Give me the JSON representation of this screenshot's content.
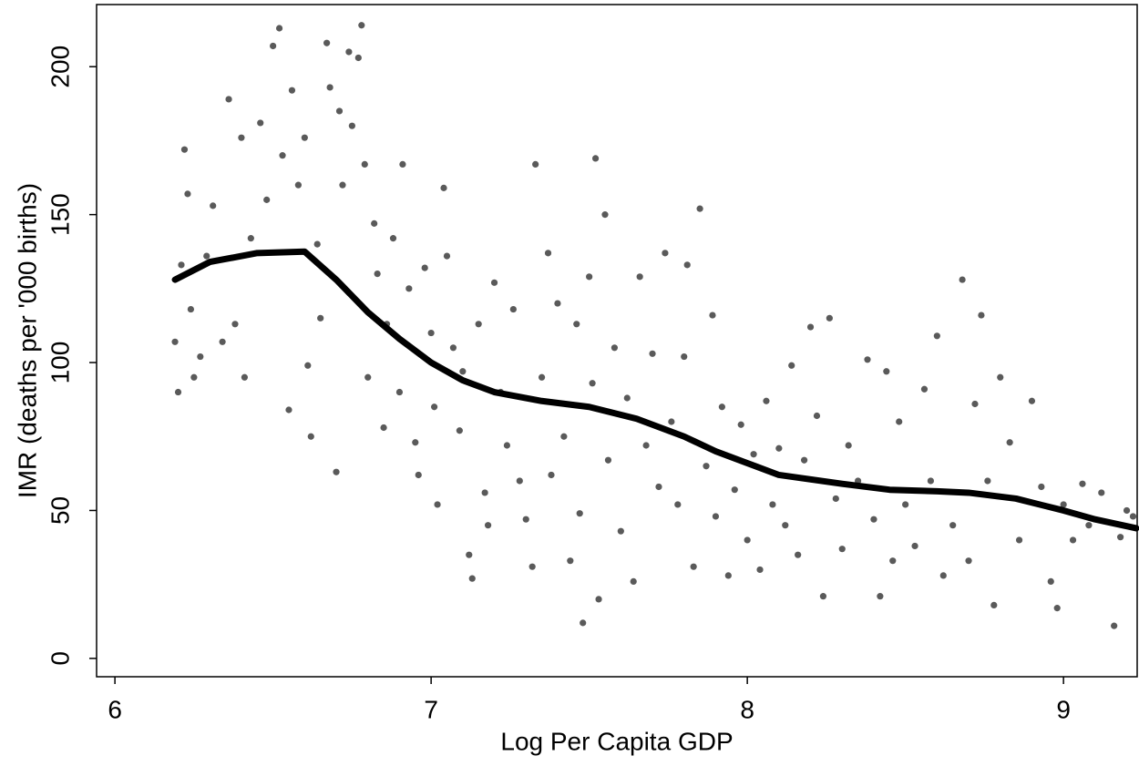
{
  "chart_data": {
    "type": "scatter",
    "x_label": "Log Per Capita GDP",
    "y_label": "IMR (deaths per '000 births)",
    "xlim": [
      5.942,
      9.233
    ],
    "xticks": [
      6,
      7,
      8,
      9
    ],
    "ylim": [
      -6.2,
      221
    ],
    "yticks": [
      0,
      50,
      100,
      150,
      200
    ],
    "series": [
      {
        "type": "scatter",
        "color": "#5a5a5a",
        "x": [
          6.19,
          6.2,
          6.21,
          6.22,
          6.23,
          6.24,
          6.25,
          6.27,
          6.29,
          6.31,
          6.34,
          6.36,
          6.38,
          6.4,
          6.41,
          6.43,
          6.46,
          6.48,
          6.5,
          6.52,
          6.53,
          6.55,
          6.56,
          6.58,
          6.6,
          6.61,
          6.62,
          6.64,
          6.65,
          6.67,
          6.68,
          6.7,
          6.71,
          6.72,
          6.74,
          6.75,
          6.77,
          6.78,
          6.79,
          6.8,
          6.82,
          6.83,
          6.85,
          6.86,
          6.88,
          6.9,
          6.91,
          6.93,
          6.95,
          6.96,
          6.98,
          7.0,
          7.01,
          7.02,
          7.04,
          7.05,
          7.07,
          7.09,
          7.1,
          7.12,
          7.13,
          7.15,
          7.17,
          7.18,
          7.2,
          7.22,
          7.24,
          7.26,
          7.28,
          7.3,
          7.32,
          7.33,
          7.35,
          7.37,
          7.38,
          7.4,
          7.42,
          7.44,
          7.46,
          7.47,
          7.48,
          7.5,
          7.51,
          7.52,
          7.53,
          7.55,
          7.56,
          7.58,
          7.6,
          7.62,
          7.64,
          7.66,
          7.68,
          7.7,
          7.72,
          7.74,
          7.76,
          7.78,
          7.8,
          7.81,
          7.83,
          7.85,
          7.87,
          7.89,
          7.9,
          7.92,
          7.94,
          7.96,
          7.98,
          8.0,
          8.02,
          8.04,
          8.06,
          8.08,
          8.1,
          8.12,
          8.14,
          8.16,
          8.18,
          8.2,
          8.22,
          8.24,
          8.26,
          8.28,
          8.3,
          8.32,
          8.35,
          8.38,
          8.4,
          8.42,
          8.44,
          8.46,
          8.48,
          8.5,
          8.53,
          8.56,
          8.58,
          8.6,
          8.62,
          8.65,
          8.68,
          8.7,
          8.72,
          8.74,
          8.76,
          8.78,
          8.8,
          8.83,
          8.86,
          8.9,
          8.93,
          8.96,
          8.98,
          9.0,
          9.03,
          9.06,
          9.08,
          9.12,
          9.16,
          9.18,
          9.2,
          9.22
        ],
        "values": [
          107,
          90,
          133,
          172,
          157,
          118,
          95,
          102,
          136,
          153,
          107,
          189,
          113,
          176,
          95,
          142,
          181,
          155,
          207,
          213,
          170,
          84,
          192,
          160,
          176,
          99,
          75,
          140,
          115,
          208,
          193,
          63,
          185,
          160,
          205,
          180,
          203,
          214,
          167,
          95,
          147,
          130,
          78,
          113,
          142,
          90,
          167,
          125,
          73,
          62,
          132,
          110,
          85,
          52,
          159,
          136,
          105,
          77,
          97,
          35,
          27,
          113,
          56,
          45,
          127,
          90,
          72,
          118,
          60,
          47,
          31,
          167,
          95,
          137,
          62,
          120,
          75,
          33,
          113,
          49,
          12,
          129,
          93,
          169,
          20,
          150,
          67,
          105,
          43,
          88,
          26,
          129,
          72,
          103,
          58,
          137,
          80,
          52,
          102,
          133,
          31,
          152,
          65,
          116,
          48,
          85,
          28,
          57,
          79,
          40,
          69,
          30,
          87,
          52,
          71,
          45,
          99,
          35,
          67,
          112,
          82,
          21,
          115,
          54,
          37,
          72,
          60,
          101,
          47,
          21,
          97,
          33,
          80,
          52,
          38,
          91,
          60,
          109,
          28,
          45,
          128,
          33,
          86,
          116,
          60,
          18,
          95,
          73,
          40,
          87,
          58,
          26,
          17,
          52,
          40,
          59,
          45,
          56,
          11,
          41,
          50,
          48
        ]
      },
      {
        "type": "line",
        "color": "#000000",
        "x": [
          6.19,
          6.3,
          6.45,
          6.6,
          6.7,
          6.8,
          6.9,
          7.0,
          7.1,
          7.2,
          7.35,
          7.5,
          7.65,
          7.8,
          7.9,
          8.0,
          8.1,
          8.2,
          8.3,
          8.45,
          8.6,
          8.7,
          8.85,
          9.0,
          9.1,
          9.23
        ],
        "values": [
          128,
          134,
          137,
          137.5,
          128,
          117,
          108,
          100,
          94,
          90,
          87,
          85,
          81,
          75,
          70,
          66,
          62,
          60.5,
          59,
          57,
          56.5,
          56,
          54,
          50,
          47,
          44
        ]
      }
    ]
  }
}
